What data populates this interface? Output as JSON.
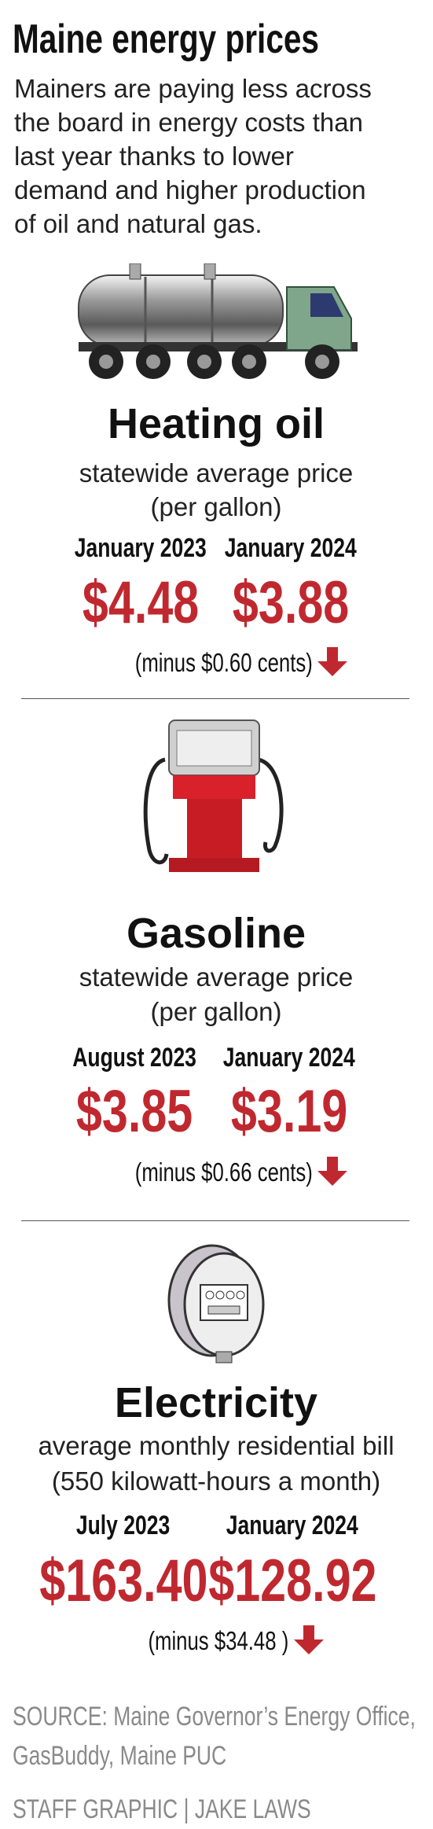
{
  "header": {
    "title": "Maine energy prices",
    "subtitle": [
      "Mainers are paying less across",
      "the board in energy costs than",
      "last year thanks to lower",
      "demand and higher production",
      "of oil and natural gas."
    ]
  },
  "sections": [
    {
      "name": "Heating oil",
      "description": [
        "statewide average price",
        "(per gallon)"
      ],
      "periods": [
        {
          "label": "January 2023",
          "price": "$4.48"
        },
        {
          "label": "January 2024",
          "price": "$3.88"
        }
      ],
      "change": "(minus $0.60 cents)"
    },
    {
      "name": "Gasoline",
      "description": [
        "statewide average price",
        "(per gallon)"
      ],
      "periods": [
        {
          "label": "August 2023",
          "price": "$3.85"
        },
        {
          "label": "January 2024",
          "price": "$3.19"
        }
      ],
      "change": "(minus $0.66 cents)"
    },
    {
      "name": "Electricity",
      "description": [
        "average monthly residential bill",
        "(550 kilowatt-hours a month)"
      ],
      "periods": [
        {
          "label": "July 2023",
          "price": "$163.40"
        },
        {
          "label": "January 2024",
          "price": "$128.92"
        }
      ],
      "change": "(minus $34.48 )"
    }
  ],
  "footer": {
    "source": [
      "SOURCE: Maine Governor’s Energy Office,",
      "GasBuddy, Maine PUC"
    ],
    "credit": "STAFF GRAPHIC | JAKE LAWS"
  }
}
